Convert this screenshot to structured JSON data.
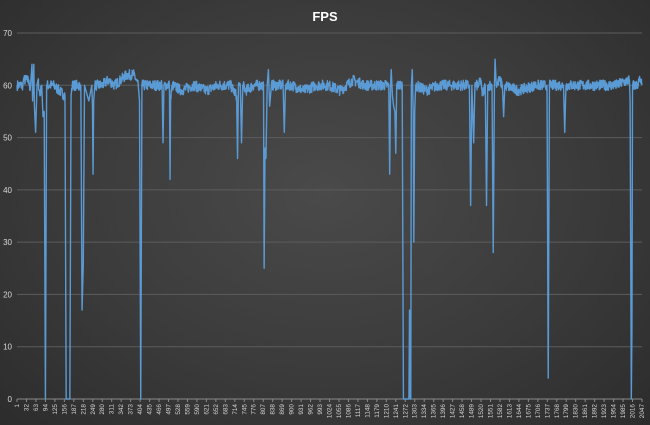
{
  "chart_data": {
    "type": "line",
    "title": "FPS",
    "xlabel": "",
    "ylabel": "",
    "ylim": [
      0,
      70
    ],
    "y_ticks": [
      0,
      10,
      20,
      30,
      40,
      50,
      60,
      70
    ],
    "x_range": [
      1,
      2047
    ],
    "x_tick_labels": [
      "1",
      "32",
      "63",
      "94",
      "125",
      "156",
      "187",
      "218",
      "249",
      "280",
      "311",
      "342",
      "373",
      "404",
      "435",
      "466",
      "497",
      "528",
      "559",
      "590",
      "621",
      "652",
      "683",
      "714",
      "745",
      "776",
      "807",
      "838",
      "869",
      "900",
      "931",
      "962",
      "993",
      "1024",
      "1055",
      "1086",
      "1117",
      "1148",
      "1179",
      "1210",
      "1241",
      "1272",
      "1303",
      "1334",
      "1365",
      "1396",
      "1427",
      "1458",
      "1489",
      "1520",
      "1551",
      "1582",
      "1613",
      "1644",
      "1675",
      "1706",
      "1737",
      "1768",
      "1799",
      "1830",
      "1861",
      "1892",
      "1923",
      "1954",
      "1985",
      "2016",
      "2047"
    ],
    "grid": true,
    "line_color": "#5b9bd5",
    "baseline": 60,
    "noise": 1.0,
    "series": [
      {
        "points": [
          [
            1,
            60
          ],
          [
            20,
            60
          ],
          [
            22,
            61
          ],
          [
            40,
            61
          ],
          [
            44,
            59
          ],
          [
            50,
            64
          ],
          [
            52,
            57
          ],
          [
            56,
            64
          ],
          [
            58,
            56
          ],
          [
            62,
            51
          ],
          [
            66,
            59
          ],
          [
            70,
            61
          ],
          [
            76,
            58
          ],
          [
            82,
            60
          ],
          [
            86,
            54
          ],
          [
            90,
            55
          ],
          [
            94,
            0
          ],
          [
            98,
            60
          ],
          [
            120,
            60
          ],
          [
            158,
            58
          ],
          [
            162,
            0
          ],
          [
            168,
            0
          ],
          [
            174,
            0
          ],
          [
            178,
            58
          ],
          [
            182,
            60
          ],
          [
            210,
            60
          ],
          [
            214,
            17
          ],
          [
            218,
            26
          ],
          [
            222,
            60
          ],
          [
            236,
            57
          ],
          [
            246,
            60
          ],
          [
            248,
            56
          ],
          [
            250,
            43
          ],
          [
            252,
            57
          ],
          [
            256,
            60
          ],
          [
            280,
            60
          ],
          [
            300,
            61
          ],
          [
            320,
            60
          ],
          [
            340,
            61
          ],
          [
            360,
            62
          ],
          [
            384,
            62
          ],
          [
            398,
            60
          ],
          [
            402,
            57
          ],
          [
            406,
            0
          ],
          [
            410,
            60
          ],
          [
            440,
            60
          ],
          [
            476,
            60
          ],
          [
            479,
            49
          ],
          [
            482,
            60
          ],
          [
            500,
            60
          ],
          [
            502,
            42
          ],
          [
            504,
            58
          ],
          [
            510,
            60
          ],
          [
            540,
            59
          ],
          [
            580,
            60
          ],
          [
            620,
            59
          ],
          [
            660,
            60
          ],
          [
            700,
            60
          ],
          [
            720,
            58
          ],
          [
            723,
            46
          ],
          [
            726,
            60
          ],
          [
            732,
            60
          ],
          [
            736,
            49
          ],
          [
            740,
            60
          ],
          [
            750,
            59
          ],
          [
            776,
            60
          ],
          [
            808,
            60
          ],
          [
            810,
            25
          ],
          [
            813,
            48
          ],
          [
            816,
            46
          ],
          [
            820,
            60
          ],
          [
            824,
            63
          ],
          [
            828,
            56
          ],
          [
            834,
            60
          ],
          [
            860,
            60
          ],
          [
            872,
            60
          ],
          [
            876,
            51
          ],
          [
            880,
            60
          ],
          [
            900,
            60
          ],
          [
            940,
            59
          ],
          [
            980,
            60
          ],
          [
            1020,
            60
          ],
          [
            1060,
            59
          ],
          [
            1100,
            61
          ],
          [
            1140,
            60
          ],
          [
            1180,
            60
          ],
          [
            1218,
            60
          ],
          [
            1221,
            43
          ],
          [
            1224,
            60
          ],
          [
            1226,
            63
          ],
          [
            1230,
            58
          ],
          [
            1234,
            56
          ],
          [
            1238,
            55
          ],
          [
            1241,
            47
          ],
          [
            1244,
            60
          ],
          [
            1262,
            60
          ],
          [
            1266,
            0
          ],
          [
            1272,
            0
          ],
          [
            1280,
            0
          ],
          [
            1284,
            0
          ],
          [
            1286,
            17
          ],
          [
            1288,
            0
          ],
          [
            1290,
            0
          ],
          [
            1292,
            60
          ],
          [
            1295,
            63
          ],
          [
            1298,
            55
          ],
          [
            1300,
            30
          ],
          [
            1303,
            55
          ],
          [
            1306,
            60
          ],
          [
            1340,
            59
          ],
          [
            1380,
            60
          ],
          [
            1420,
            60
          ],
          [
            1482,
            60
          ],
          [
            1486,
            37
          ],
          [
            1490,
            60
          ],
          [
            1496,
            49
          ],
          [
            1500,
            60
          ],
          [
            1512,
            60
          ],
          [
            1520,
            61
          ],
          [
            1524,
            58
          ],
          [
            1534,
            60
          ],
          [
            1538,
            37
          ],
          [
            1542,
            60
          ],
          [
            1556,
            60
          ],
          [
            1560,
            28
          ],
          [
            1564,
            60
          ],
          [
            1566,
            65
          ],
          [
            1570,
            60
          ],
          [
            1580,
            61
          ],
          [
            1590,
            60
          ],
          [
            1594,
            54
          ],
          [
            1598,
            60
          ],
          [
            1640,
            59
          ],
          [
            1700,
            60
          ],
          [
            1736,
            60
          ],
          [
            1740,
            4
          ],
          [
            1744,
            60
          ],
          [
            1780,
            60
          ],
          [
            1790,
            60
          ],
          [
            1794,
            51
          ],
          [
            1798,
            60
          ],
          [
            1830,
            60
          ],
          [
            1880,
            60
          ],
          [
            1920,
            60
          ],
          [
            1960,
            60
          ],
          [
            2006,
            61
          ],
          [
            2008,
            57
          ],
          [
            2012,
            0
          ],
          [
            2014,
            13
          ],
          [
            2016,
            60
          ],
          [
            2030,
            60
          ],
          [
            2040,
            61
          ],
          [
            2047,
            60
          ]
        ]
      }
    ]
  }
}
